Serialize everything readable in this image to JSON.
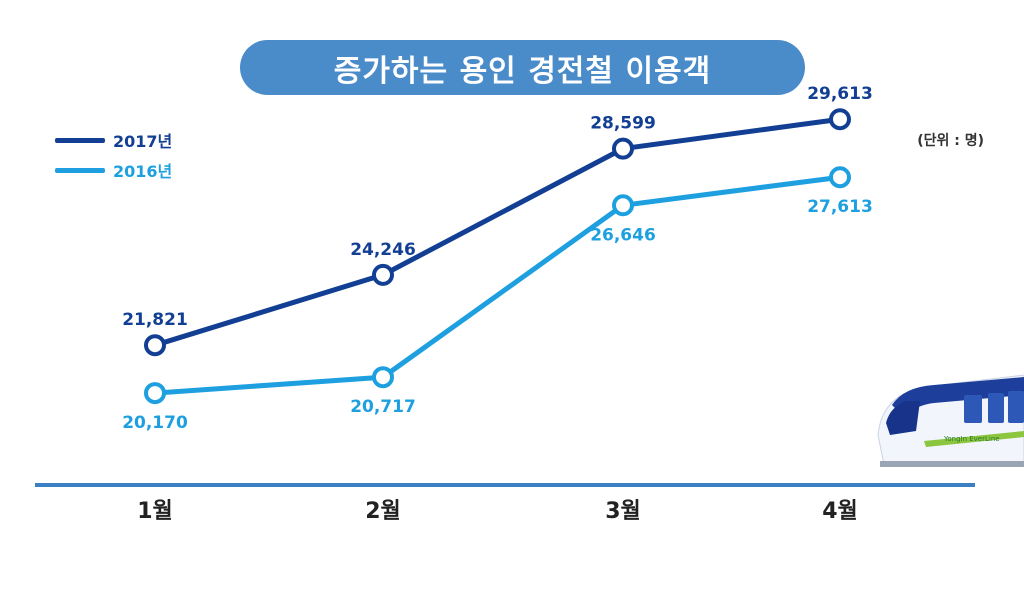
{
  "title": "증가하는 용인 경전철 이용객",
  "unit_label": "(단위 : 명)",
  "colors": {
    "title_bg": "#4a8cc9",
    "series_2017": "#123f93",
    "series_2016": "#1ea0e0",
    "baseline": "#3b7fc3"
  },
  "train": {
    "brand": "YongIn EverLine"
  },
  "chart_data": {
    "type": "line",
    "categories": [
      "1월",
      "2월",
      "3월",
      "4월"
    ],
    "series": [
      {
        "name": "2017년",
        "values": [
          21821,
          24246,
          28599,
          29613
        ],
        "labels": [
          "21,821",
          "24,246",
          "28,599",
          "29,613"
        ]
      },
      {
        "name": "2016년",
        "values": [
          20170,
          20717,
          26646,
          27613
        ],
        "labels": [
          "20,170",
          "20,717",
          "26,646",
          "27,613"
        ]
      }
    ],
    "ylim": [
      17000,
      31000
    ],
    "grid": false,
    "legend": "top-left"
  }
}
